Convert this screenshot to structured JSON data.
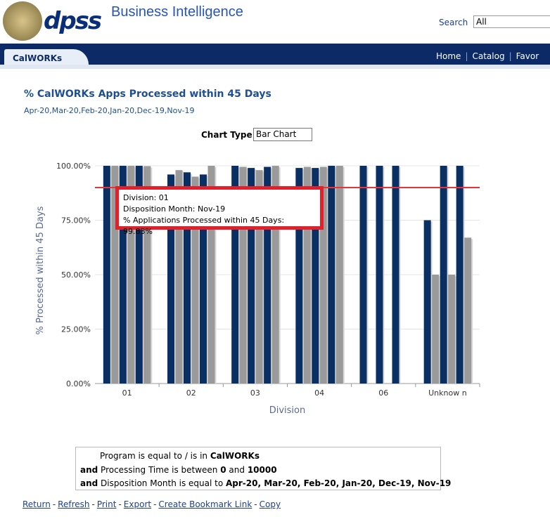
{
  "header": {
    "logo_text": "dpss",
    "title": "Business Intelligence",
    "search_label": "Search",
    "search_value": "All"
  },
  "nav": {
    "tab": "CalWORKs",
    "links": [
      "Home",
      "Catalog",
      "Favor"
    ]
  },
  "report": {
    "title": "% CalWORKs Apps Processed within 45 Days",
    "subtitle": "Apr-20,Mar-20,Feb-20,Jan-20,Dec-19,Nov-19",
    "chart_type_label": "Chart Type",
    "chart_type_value": "Bar Chart"
  },
  "chart_data": {
    "type": "bar",
    "x_label": "Division",
    "y_label": "% Processed within 45 Days",
    "categories": [
      "01",
      "02",
      "03",
      "04",
      "06",
      "Unknow n"
    ],
    "series": [
      {
        "color": "#0a2f63",
        "values": [
          100,
          96,
          100,
          99,
          100,
          75
        ]
      },
      {
        "color": "#9a9a9a",
        "values": [
          100,
          98,
          99.5,
          99.5,
          null,
          50
        ]
      },
      {
        "color": "#0a2f63",
        "values": [
          100,
          97,
          99,
          99,
          100,
          100
        ]
      },
      {
        "color": "#9a9a9a",
        "values": [
          100,
          95,
          98,
          99.5,
          null,
          50
        ]
      },
      {
        "color": "#0a2f63",
        "values": [
          100,
          96,
          99.5,
          100,
          100,
          100
        ]
      },
      {
        "color": "#9a9a9a",
        "values": [
          99.83,
          100,
          100,
          100,
          null,
          67
        ]
      }
    ],
    "ylim": [
      0,
      100
    ],
    "yticks": [
      {
        "value": 0,
        "label": "0.00%"
      },
      {
        "value": 25,
        "label": "25.00%"
      },
      {
        "value": 50,
        "label": "50.00%"
      },
      {
        "value": 75,
        "label": "75.00%"
      },
      {
        "value": 100,
        "label": "100.00%"
      }
    ],
    "grid": true,
    "target_line": {
      "value": 90,
      "color": "#e8333a"
    }
  },
  "tooltip": {
    "lines": [
      "Division: 01",
      "Disposition Month: Nov-19",
      "% Applications Processed within 45 Days: 99.83%"
    ]
  },
  "filters": [
    [
      {
        "text": "Program is equal to / is in "
      },
      {
        "text": "CalWORKs",
        "bold": true
      }
    ],
    [
      {
        "text": "and",
        "bold": true
      },
      {
        "text": " Processing Time is between "
      },
      {
        "text": "0",
        "bold": true
      },
      {
        "text": " and "
      },
      {
        "text": "10000",
        "bold": true
      }
    ],
    [
      {
        "text": "and",
        "bold": true
      },
      {
        "text": " Disposition Month is equal to "
      },
      {
        "text": "Apr-20, Mar-20, Feb-20, Jan-20, Dec-19, Nov-19",
        "bold": true
      }
    ]
  ],
  "footer_links": [
    "Return",
    "Refresh",
    "Print",
    "Export",
    "Create Bookmark Link",
    "Copy"
  ]
}
